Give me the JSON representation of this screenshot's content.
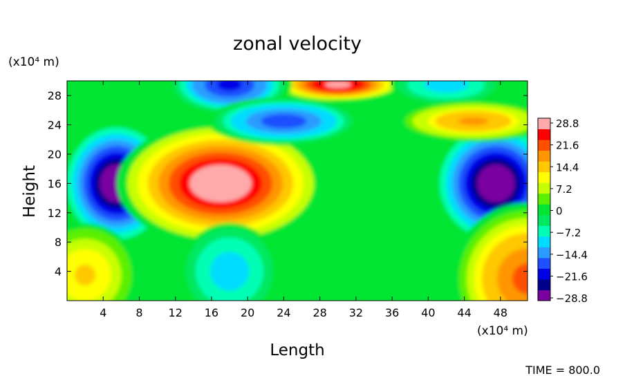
{
  "chart_data": {
    "type": "heatmap",
    "title": "zonal velocity",
    "xlabel": "Length",
    "ylabel": "Height",
    "x_unit": "(x10⁴ m)",
    "y_unit": "(x10⁴ m)",
    "xlim": [
      0,
      51
    ],
    "ylim": [
      0,
      30
    ],
    "x_ticks": [
      4,
      8,
      12,
      16,
      20,
      24,
      28,
      32,
      36,
      40,
      44,
      48
    ],
    "y_ticks": [
      4,
      8,
      12,
      16,
      20,
      24,
      28
    ],
    "colorbar": {
      "ticks": [
        28.8,
        21.6,
        14.4,
        7.2,
        0,
        -7.2,
        -14.4,
        -21.6,
        -28.8
      ],
      "tick_labels": [
        "28.8",
        "21.6",
        "14.4",
        "7.2",
        "0",
        "−7.2",
        "−14.4",
        "−21.6",
        "−28.8"
      ],
      "range": [
        -32,
        32
      ],
      "colors": [
        "#7a00a0",
        "#00008c",
        "#0000e6",
        "#1e50ff",
        "#2a9cff",
        "#00dcff",
        "#00ffb4",
        "#00e860",
        "#00e632",
        "#5af000",
        "#c8ff00",
        "#ffff00",
        "#ffc800",
        "#ff9600",
        "#ff5000",
        "#ff0000",
        "#ffaaaa"
      ]
    },
    "features": [
      {
        "x": 5.5,
        "y": 16,
        "value": -32
      },
      {
        "x": 47.5,
        "y": 16,
        "value": -32
      },
      {
        "x": 17,
        "y": 16,
        "value": 32
      },
      {
        "x": 30,
        "y": 29.5,
        "value": 30
      },
      {
        "x": 18,
        "y": 29.5,
        "value": -22
      },
      {
        "x": 42,
        "y": 29.5,
        "value": -12
      },
      {
        "x": 24,
        "y": 24.5,
        "value": -20
      },
      {
        "x": 45,
        "y": 24.5,
        "value": 18
      },
      {
        "x": 18,
        "y": 4,
        "value": -12
      },
      {
        "x": 2,
        "y": 3.5,
        "value": 14
      },
      {
        "x": 51,
        "y": 3,
        "value": 22
      }
    ]
  },
  "footer": {
    "time_text": "TIME = 800.0"
  }
}
